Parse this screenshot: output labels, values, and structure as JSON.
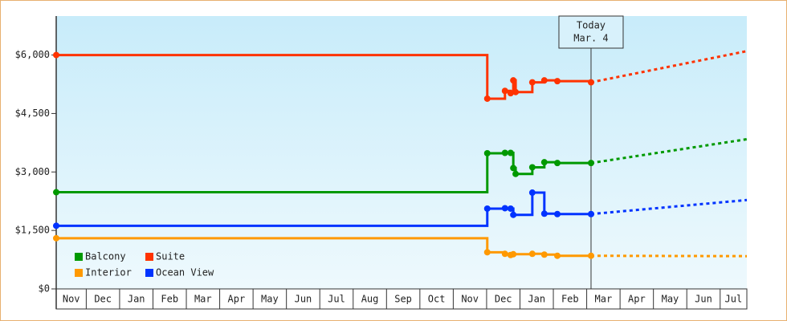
{
  "chart_data": {
    "type": "step",
    "categories": [
      "Nov",
      "Dec",
      "Jan",
      "Feb",
      "Mar",
      "Apr",
      "May",
      "Jun",
      "Jul",
      "Aug",
      "Sep",
      "Oct",
      "Nov",
      "Dec",
      "Jan",
      "Feb",
      "Mar",
      "Apr",
      "May",
      "Jun",
      "Jul"
    ],
    "xlim": [
      0.1,
      20.8
    ],
    "ylim": [
      0,
      7000
    ],
    "yticks": [
      {
        "value": 0,
        "label": "$0"
      },
      {
        "value": 1500,
        "label": "$1,500"
      },
      {
        "value": 3000,
        "label": "$3,000"
      },
      {
        "value": 4500,
        "label": "$4,500"
      },
      {
        "value": 6000,
        "label": "$6,000"
      }
    ],
    "series": [
      {
        "name": "Balcony",
        "color": "#009900",
        "x": [
          0.1,
          13.02,
          13.55,
          13.72,
          13.8,
          13.87,
          14.37,
          14.73,
          15.12,
          16.13
        ],
        "values": [
          2480,
          3480,
          3490,
          3490,
          3100,
          2950,
          3120,
          3250,
          3230,
          3230
        ],
        "forecast": {
          "x": [
            16.13,
            20.8
          ],
          "values": [
            3230,
            3840
          ]
        }
      },
      {
        "name": "Suite",
        "color": "#ff3300",
        "x": [
          0.1,
          13.02,
          13.55,
          13.72,
          13.8,
          13.87,
          14.37,
          14.73,
          15.12,
          16.13
        ],
        "values": [
          6000,
          4880,
          5080,
          5020,
          5350,
          5050,
          5300,
          5350,
          5330,
          5300
        ],
        "forecast": {
          "x": [
            16.13,
            20.8
          ],
          "values": [
            5300,
            6100
          ]
        }
      },
      {
        "name": "Interior",
        "color": "#ff9900",
        "x": [
          0.1,
          13.02,
          13.55,
          13.72,
          13.8,
          14.37,
          14.73,
          15.12,
          16.13
        ],
        "values": [
          1300,
          940,
          900,
          870,
          890,
          900,
          880,
          850,
          850
        ],
        "forecast": {
          "x": [
            16.13,
            20.8
          ],
          "values": [
            850,
            840
          ]
        }
      },
      {
        "name": "Ocean View",
        "color": "#0033ff",
        "x": [
          0.1,
          13.02,
          13.55,
          13.72,
          13.8,
          14.37,
          14.73,
          15.12,
          16.13
        ],
        "values": [
          1620,
          2060,
          2070,
          2060,
          1900,
          2470,
          1930,
          1920,
          1920
        ],
        "forecast": {
          "x": [
            16.13,
            20.8
          ],
          "values": [
            1920,
            2280
          ]
        }
      }
    ],
    "annotation": {
      "x": 16.13,
      "lines": [
        "Today",
        "Mar. 4"
      ]
    }
  }
}
